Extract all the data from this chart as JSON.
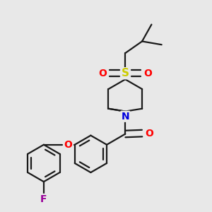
{
  "background_color": "#e8e8e8",
  "bond_color": "#1a1a1a",
  "atom_colors": {
    "F": "#990099",
    "O": "#ff0000",
    "N": "#0000dd",
    "S": "#cccc00",
    "C": "#1a1a1a"
  },
  "figsize": [
    3.0,
    3.0
  ],
  "dpi": 100,
  "bond_lw": 1.6
}
